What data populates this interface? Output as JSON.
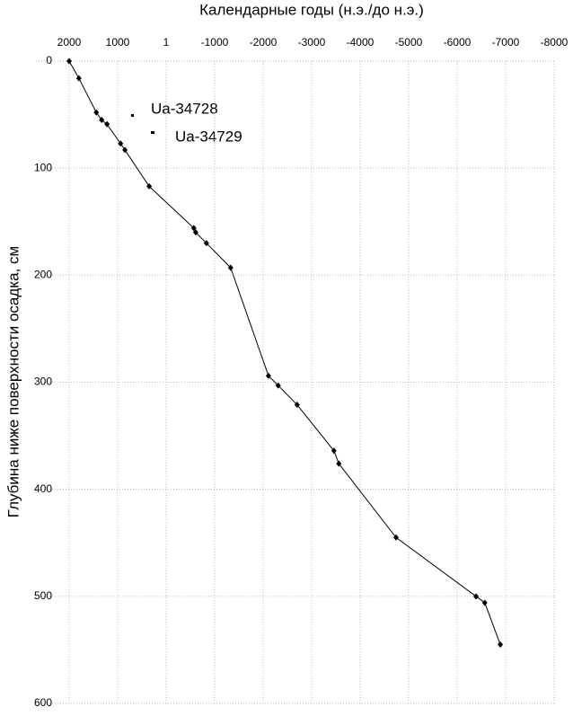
{
  "chart_data": {
    "type": "line",
    "title": "Календарные годы (н.э./до н.э.)",
    "y_label": "Глубина ниже поверхности осадка, см",
    "annotations": [
      "Ua-34728",
      "Ua-34729"
    ],
    "xlim": [
      2000,
      -8000
    ],
    "xticks": [
      2000,
      1000,
      1,
      -1000,
      -2000,
      -3000,
      -4000,
      -5000,
      -6000,
      -7000,
      -8000
    ],
    "ylim": [
      0,
      600
    ],
    "yticks": [
      0,
      100,
      200,
      300,
      400,
      500,
      600
    ],
    "y_inverted": true,
    "grid": true,
    "series": [
      {
        "color": "#000000",
        "x": [
          2000,
          1800,
          1440,
          1330,
          1220,
          940,
          850,
          350,
          -570,
          -610,
          -830,
          -1330,
          -2110,
          -2310,
          -2700,
          -3460,
          -3560,
          -4740,
          -6390,
          -6570,
          -6890
        ],
        "values": [
          0,
          16,
          48,
          55,
          59,
          77,
          83,
          117,
          156,
          160,
          170,
          193,
          294,
          303,
          321,
          364,
          376,
          445,
          500,
          506,
          545
        ]
      }
    ]
  }
}
